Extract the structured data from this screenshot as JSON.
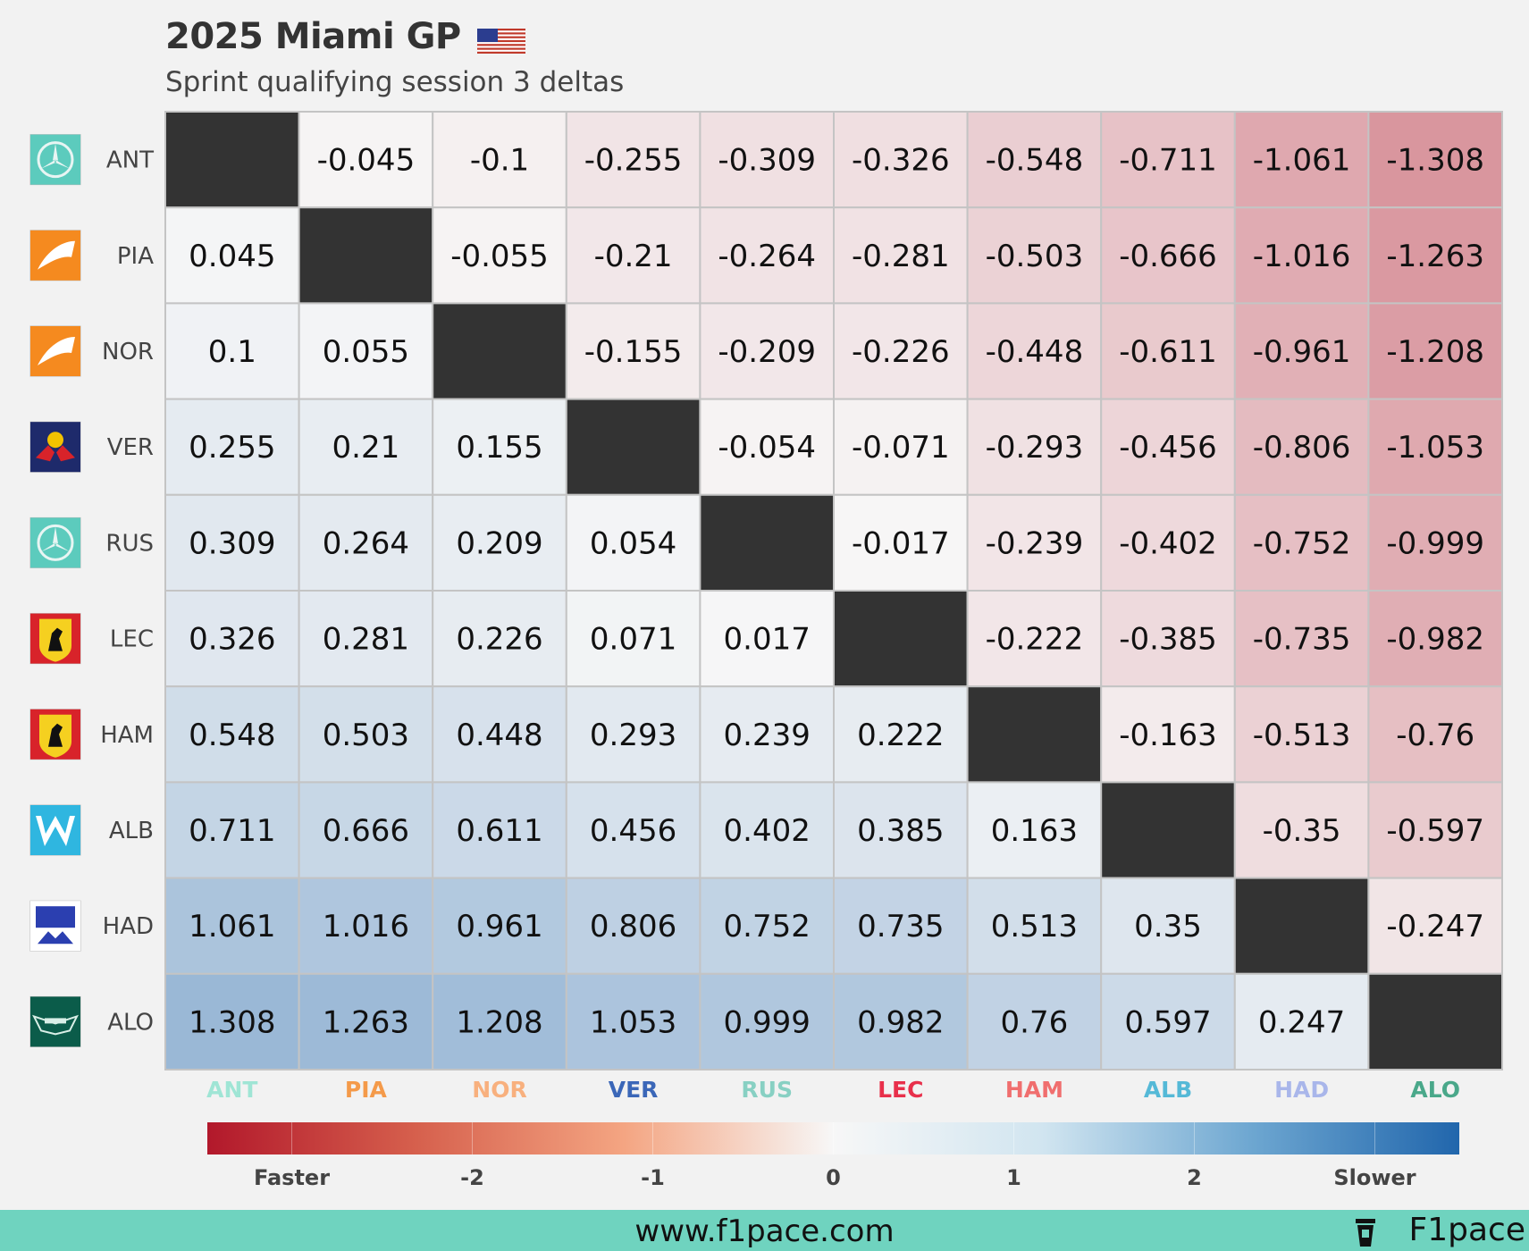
{
  "header": {
    "title": "2025 Miami GP",
    "subtitle": "Sprint qualifying session 3 deltas"
  },
  "footer": {
    "url": "www.f1pace.com",
    "brand": "F1pace"
  },
  "chart_data": {
    "type": "heatmap",
    "title": "2025 Miami GP",
    "subtitle": "Sprint qualifying session 3 deltas",
    "rows": [
      "ANT",
      "PIA",
      "NOR",
      "VER",
      "RUS",
      "LEC",
      "HAM",
      "ALB",
      "HAD",
      "ALO"
    ],
    "columns": [
      "ANT",
      "PIA",
      "NOR",
      "VER",
      "RUS",
      "LEC",
      "HAM",
      "ALB",
      "HAD",
      "ALO"
    ],
    "column_colors": [
      "#9fe5d5",
      "#f49a4a",
      "#f8b07e",
      "#3b67b8",
      "#88d0c3",
      "#e8304b",
      "#f06e6e",
      "#55b9d7",
      "#a9b6ea",
      "#4aa88a"
    ],
    "values": [
      [
        null,
        -0.045,
        -0.1,
        -0.255,
        -0.309,
        -0.326,
        -0.548,
        -0.711,
        -1.061,
        -1.308
      ],
      [
        0.045,
        null,
        -0.055,
        -0.21,
        -0.264,
        -0.281,
        -0.503,
        -0.666,
        -1.016,
        -1.263
      ],
      [
        0.1,
        0.055,
        null,
        -0.155,
        -0.209,
        -0.226,
        -0.448,
        -0.611,
        -0.961,
        -1.208
      ],
      [
        0.255,
        0.21,
        0.155,
        null,
        -0.054,
        -0.071,
        -0.293,
        -0.456,
        -0.806,
        -1.053
      ],
      [
        0.309,
        0.264,
        0.209,
        0.054,
        null,
        -0.017,
        -0.239,
        -0.402,
        -0.752,
        -0.999
      ],
      [
        0.326,
        0.281,
        0.226,
        0.071,
        0.017,
        null,
        -0.222,
        -0.385,
        -0.735,
        -0.982
      ],
      [
        0.548,
        0.503,
        0.448,
        0.293,
        0.239,
        0.222,
        null,
        -0.163,
        -0.513,
        -0.76
      ],
      [
        0.711,
        0.666,
        0.611,
        0.456,
        0.402,
        0.385,
        0.163,
        null,
        -0.35,
        -0.597
      ],
      [
        1.061,
        1.016,
        0.961,
        0.806,
        0.752,
        0.735,
        0.513,
        0.35,
        null,
        -0.247
      ],
      [
        1.308,
        1.263,
        1.208,
        1.053,
        0.999,
        0.982,
        0.76,
        0.597,
        0.247,
        null
      ]
    ],
    "colorbar": {
      "range": [
        -3,
        3
      ],
      "ticks": [
        -3,
        -2,
        -1,
        0,
        1,
        2,
        3
      ],
      "tick_labels": [
        "Faster",
        "-2",
        "-1",
        "0",
        "1",
        "2",
        "Slower"
      ],
      "colors": {
        "negative": "#b2182b",
        "zero": "#f7f7f7",
        "positive": "#2166ac"
      }
    },
    "team_logos": [
      "mercedes",
      "mclaren",
      "mclaren",
      "red-bull",
      "mercedes",
      "ferrari",
      "ferrari",
      "williams",
      "racing-bulls",
      "aston-martin"
    ]
  }
}
